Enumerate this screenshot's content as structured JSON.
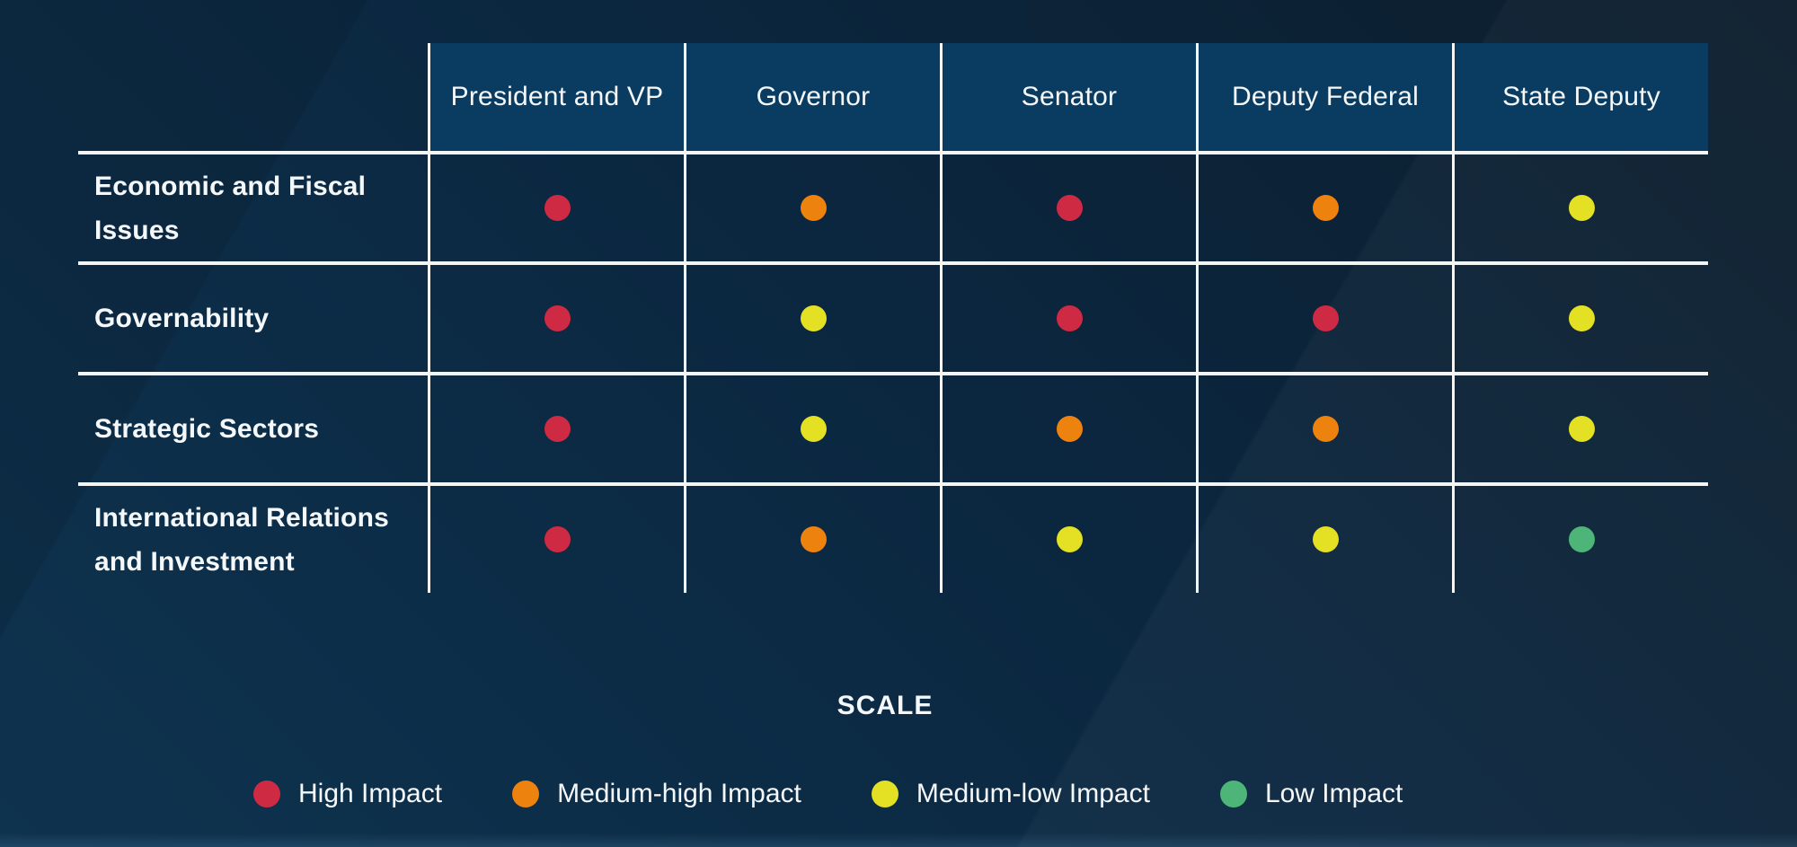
{
  "matrix": {
    "columns": [
      "President and VP",
      "Governor",
      "Senator",
      "Deputy Federal",
      "State Deputy"
    ],
    "rows": [
      {
        "label": "Economic and Fiscal Issues",
        "label_lines": [
          "Economic and Fiscal",
          "Issues"
        ],
        "levels": [
          "high",
          "medium_high",
          "high",
          "medium_high",
          "medium_low"
        ]
      },
      {
        "label": "Governability",
        "label_lines": [
          "Governability"
        ],
        "levels": [
          "high",
          "medium_low",
          "high",
          "high",
          "medium_low"
        ]
      },
      {
        "label": "Strategic Sectors",
        "label_lines": [
          "Strategic Sectors"
        ],
        "levels": [
          "high",
          "medium_low",
          "medium_high",
          "medium_high",
          "medium_low"
        ]
      },
      {
        "label": "International Relations and Investment",
        "label_lines": [
          "International Relations",
          "and Investment"
        ],
        "levels": [
          "high",
          "medium_high",
          "medium_low",
          "medium_low",
          "low"
        ]
      }
    ]
  },
  "legend": {
    "title": "SCALE",
    "items": [
      {
        "label": "High Impact",
        "level": "high"
      },
      {
        "label": "Medium-high Impact",
        "level": "medium_high"
      },
      {
        "label": "Medium-low Impact",
        "level": "medium_low"
      },
      {
        "label": "Low Impact",
        "level": "low"
      }
    ]
  },
  "colors": {
    "high": "#ce2a44",
    "medium_high": "#ee820e",
    "medium_low": "#e4e023",
    "low": "#4cb577",
    "header_bg": "#0a3c61",
    "grid_line": "#f4f6f6"
  },
  "chart_data": {
    "type": "heatmap",
    "title": "",
    "columns": [
      "President and VP",
      "Governor",
      "Senator",
      "Deputy Federal",
      "State Deputy"
    ],
    "rows": [
      "Economic and Fiscal Issues",
      "Governability",
      "Strategic Sectors",
      "International Relations and Investment"
    ],
    "values": [
      [
        "High Impact",
        "Medium-high Impact",
        "High Impact",
        "Medium-high Impact",
        "Medium-low Impact"
      ],
      [
        "High Impact",
        "Medium-low Impact",
        "High Impact",
        "High Impact",
        "Medium-low Impact"
      ],
      [
        "High Impact",
        "Medium-low Impact",
        "Medium-high Impact",
        "Medium-high Impact",
        "Medium-low Impact"
      ],
      [
        "High Impact",
        "Medium-high Impact",
        "Medium-low Impact",
        "Medium-low Impact",
        "Low Impact"
      ]
    ],
    "legend_title": "SCALE",
    "legend_entries": [
      "High Impact",
      "Medium-high Impact",
      "Medium-low Impact",
      "Low Impact"
    ],
    "legend_colors": [
      "#ce2a44",
      "#ee820e",
      "#e4e023",
      "#4cb577"
    ],
    "legend_position": "bottom",
    "grid": true
  }
}
